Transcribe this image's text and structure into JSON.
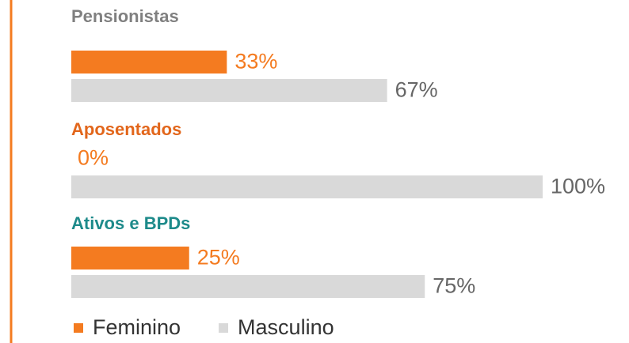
{
  "chart_data": {
    "type": "bar",
    "orientation": "horizontal",
    "categories": [
      "Pensionistas",
      "Aposentados",
      "Ativos e BPDs"
    ],
    "category_colors": [
      "#808080",
      "#e2661b",
      "#1d8a8a"
    ],
    "series": [
      {
        "name": "Feminino",
        "color": "#f47b20",
        "values": [
          33,
          0,
          25
        ],
        "value_labels": [
          "33%",
          "0%",
          "25%"
        ]
      },
      {
        "name": "Masculino",
        "color": "#d9d9d9",
        "values": [
          67,
          100,
          75
        ],
        "value_labels": [
          "67%",
          "100%",
          "75%"
        ]
      }
    ],
    "xlim": [
      0,
      100
    ],
    "legend": "bottom"
  }
}
